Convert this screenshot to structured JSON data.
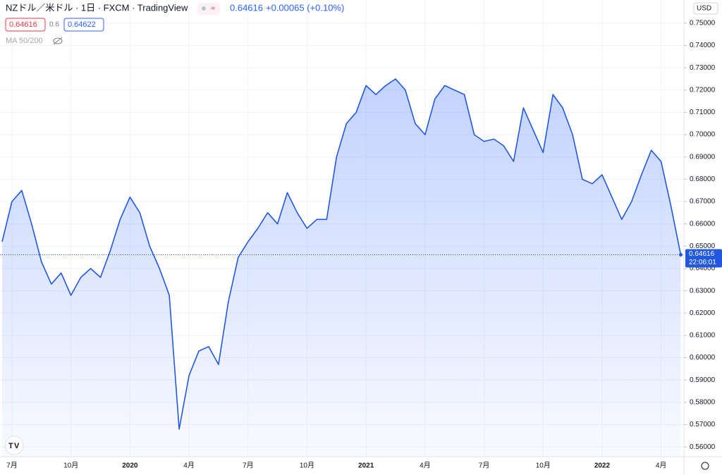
{
  "header": {
    "symbol": "NZドル／米ドル · 1日 · FXCM · TradingView",
    "change": "+0.00065 (+0.10%)",
    "bid": "0.64616",
    "spread": "0.6",
    "ask": "0.64622",
    "indicator": "MA 50/200",
    "currency": "USD",
    "time": "22:06:01"
  },
  "chart_data": {
    "type": "area",
    "color": "#2158e0",
    "categories": [
      null,
      "7月",
      null,
      null,
      null,
      null,
      null,
      "10月",
      null,
      null,
      null,
      null,
      null,
      "2020",
      null,
      null,
      null,
      null,
      null,
      "4月",
      null,
      null,
      null,
      null,
      null,
      "7月",
      null,
      null,
      null,
      null,
      null,
      "10月",
      null,
      null,
      null,
      null,
      null,
      "2021",
      null,
      null,
      null,
      null,
      null,
      "4月",
      null,
      null,
      null,
      null,
      null,
      "7月",
      null,
      null,
      null,
      null,
      null,
      "10月",
      null,
      null,
      null,
      null,
      null,
      "2022",
      null,
      null,
      null,
      null,
      null,
      "4月",
      null,
      null
    ],
    "values": [
      0.652,
      0.67,
      0.675,
      0.66,
      0.643,
      0.633,
      0.638,
      0.628,
      0.636,
      0.64,
      0.636,
      0.648,
      0.662,
      0.672,
      0.665,
      0.65,
      0.64,
      0.628,
      0.568,
      0.592,
      0.603,
      0.605,
      0.597,
      0.625,
      0.645,
      0.652,
      0.658,
      0.665,
      0.66,
      0.674,
      0.665,
      0.658,
      0.662,
      0.662,
      0.69,
      0.705,
      0.71,
      0.722,
      0.718,
      0.722,
      0.725,
      0.72,
      0.705,
      0.7,
      0.716,
      0.722,
      0.72,
      0.718,
      0.7,
      0.697,
      0.698,
      0.695,
      0.688,
      0.712,
      0.702,
      0.692,
      0.718,
      0.712,
      0.7,
      0.68,
      0.678,
      0.682,
      0.672,
      0.662,
      0.67,
      0.682,
      0.693,
      0.688,
      0.668,
      0.64616
    ],
    "ylim": [
      0.555,
      0.755
    ],
    "yticks": [
      {
        "value": 0.56,
        "label": "0.56000"
      },
      {
        "value": 0.57,
        "label": "0.57000"
      },
      {
        "value": 0.58,
        "label": "0.58000"
      },
      {
        "value": 0.59,
        "label": "0.59000"
      },
      {
        "value": 0.6,
        "label": "0.60000"
      },
      {
        "value": 0.61,
        "label": "0.61000"
      },
      {
        "value": 0.62,
        "label": "0.62000"
      },
      {
        "value": 0.63,
        "label": "0.63000"
      },
      {
        "value": 0.64,
        "label": "0.64000"
      },
      {
        "value": 0.65,
        "label": "0.65000"
      },
      {
        "value": 0.66,
        "label": "0.66000"
      },
      {
        "value": 0.67,
        "label": "0.67000"
      },
      {
        "value": 0.68,
        "label": "0.68000"
      },
      {
        "value": 0.69,
        "label": "0.69000"
      },
      {
        "value": 0.7,
        "label": "0.70000"
      },
      {
        "value": 0.71,
        "label": "0.71000"
      },
      {
        "value": 0.72,
        "label": "0.72000"
      },
      {
        "value": 0.73,
        "label": "0.73000"
      },
      {
        "value": 0.74,
        "label": "0.74000"
      },
      {
        "value": 0.75,
        "label": "0.75000"
      }
    ],
    "grid": true
  }
}
